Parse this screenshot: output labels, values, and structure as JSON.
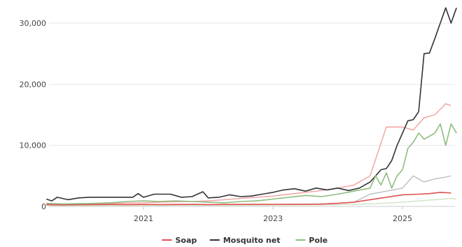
{
  "chart_data": {
    "type": "line",
    "x_domain": [
      "2019-07",
      "2025-10"
    ],
    "ylim": [
      0,
      33000
    ],
    "grid": true,
    "legend_position": "bottom",
    "y_ticks": [
      {
        "value": 0,
        "label": "0"
      },
      {
        "value": 10000,
        "label": "10,000"
      },
      {
        "value": 20000,
        "label": "20,000"
      },
      {
        "value": 30000,
        "label": "30,000"
      }
    ],
    "x_ticks": [
      {
        "value": "2021-01",
        "label": "2021"
      },
      {
        "value": "2023-01",
        "label": "2023"
      },
      {
        "value": "2025-01",
        "label": "2025"
      }
    ],
    "series": [
      {
        "name": "Soap",
        "color": "#e05050",
        "in_legend": true,
        "points": [
          [
            "2019-07",
            300
          ],
          [
            "2019-10",
            250
          ],
          [
            "2020-01",
            280
          ],
          [
            "2020-04",
            300
          ],
          [
            "2020-07",
            320
          ],
          [
            "2020-10",
            300
          ],
          [
            "2021-01",
            320
          ],
          [
            "2021-04",
            300
          ],
          [
            "2021-07",
            320
          ],
          [
            "2021-10",
            330
          ],
          [
            "2022-01",
            300
          ],
          [
            "2022-04",
            320
          ],
          [
            "2022-07",
            330
          ],
          [
            "2022-10",
            330
          ],
          [
            "2023-01",
            340
          ],
          [
            "2023-04",
            350
          ],
          [
            "2023-07",
            360
          ],
          [
            "2023-10",
            380
          ],
          [
            "2024-01",
            500
          ],
          [
            "2024-04",
            700
          ],
          [
            "2024-07",
            1100
          ],
          [
            "2024-10",
            1500
          ],
          [
            "2025-01",
            1900
          ],
          [
            "2025-04",
            2000
          ],
          [
            "2025-06",
            2100
          ],
          [
            "2025-08",
            2300
          ],
          [
            "2025-10",
            2200
          ]
        ]
      },
      {
        "name": "",
        "color": "#f0a0a0",
        "in_legend": false,
        "points": [
          [
            "2019-07",
            400
          ],
          [
            "2019-10",
            350
          ],
          [
            "2020-01",
            400
          ],
          [
            "2020-04",
            450
          ],
          [
            "2020-07",
            500
          ],
          [
            "2020-10",
            550
          ],
          [
            "2021-01",
            600
          ],
          [
            "2021-04",
            700
          ],
          [
            "2021-07",
            750
          ],
          [
            "2021-10",
            800
          ],
          [
            "2022-01",
            900
          ],
          [
            "2022-04",
            1100
          ],
          [
            "2022-07",
            1300
          ],
          [
            "2022-10",
            1500
          ],
          [
            "2023-01",
            1700
          ],
          [
            "2023-04",
            2000
          ],
          [
            "2023-07",
            2300
          ],
          [
            "2023-10",
            2600
          ],
          [
            "2024-01",
            3000
          ],
          [
            "2024-04",
            3500
          ],
          [
            "2024-07",
            5000
          ],
          [
            "2024-10",
            13000
          ],
          [
            "2025-01",
            13000
          ],
          [
            "2025-03",
            12500
          ],
          [
            "2025-05",
            14500
          ],
          [
            "2025-07",
            15000
          ],
          [
            "2025-09",
            16800
          ],
          [
            "2025-10",
            16500
          ]
        ]
      },
      {
        "name": "Mosquito net",
        "color": "#333333",
        "in_legend": true,
        "points": [
          [
            "2019-07",
            1200
          ],
          [
            "2019-08",
            900
          ],
          [
            "2019-09",
            1500
          ],
          [
            "2019-11",
            1100
          ],
          [
            "2020-01",
            1400
          ],
          [
            "2020-03",
            1500
          ],
          [
            "2020-06",
            1500
          ],
          [
            "2020-09",
            1500
          ],
          [
            "2020-11",
            1500
          ],
          [
            "2020-12",
            2100
          ],
          [
            "2021-01",
            1500
          ],
          [
            "2021-03",
            2000
          ],
          [
            "2021-06",
            2000
          ],
          [
            "2021-08",
            1500
          ],
          [
            "2021-10",
            1600
          ],
          [
            "2021-12",
            2400
          ],
          [
            "2022-01",
            1400
          ],
          [
            "2022-03",
            1500
          ],
          [
            "2022-05",
            1900
          ],
          [
            "2022-07",
            1600
          ],
          [
            "2022-09",
            1700
          ],
          [
            "2022-11",
            2000
          ],
          [
            "2023-01",
            2300
          ],
          [
            "2023-03",
            2700
          ],
          [
            "2023-05",
            2900
          ],
          [
            "2023-07",
            2500
          ],
          [
            "2023-09",
            3000
          ],
          [
            "2023-11",
            2700
          ],
          [
            "2024-01",
            3000
          ],
          [
            "2024-03",
            2600
          ],
          [
            "2024-05",
            3000
          ],
          [
            "2024-07",
            4000
          ],
          [
            "2024-09",
            6000
          ],
          [
            "2024-10",
            6200
          ],
          [
            "2024-11",
            7500
          ],
          [
            "2024-12",
            10000
          ],
          [
            "2025-01",
            12000
          ],
          [
            "2025-02",
            14000
          ],
          [
            "2025-03",
            14200
          ],
          [
            "2025-04",
            15500
          ],
          [
            "2025-05",
            25000
          ],
          [
            "2025-06",
            25100
          ],
          [
            "2025-07",
            27500
          ],
          [
            "2025-08",
            30000
          ],
          [
            "2025-09",
            32500
          ],
          [
            "2025-10",
            30000
          ],
          [
            "2025-11",
            32500
          ]
        ]
      },
      {
        "name": "",
        "color": "#bdbdbd",
        "in_legend": false,
        "points": [
          [
            "2019-07",
            200
          ],
          [
            "2020-01",
            200
          ],
          [
            "2020-07",
            220
          ],
          [
            "2021-01",
            220
          ],
          [
            "2021-07",
            250
          ],
          [
            "2022-01",
            250
          ],
          [
            "2022-07",
            280
          ],
          [
            "2023-01",
            300
          ],
          [
            "2023-07",
            350
          ],
          [
            "2023-10",
            400
          ],
          [
            "2024-01",
            500
          ],
          [
            "2024-04",
            700
          ],
          [
            "2024-07",
            2000
          ],
          [
            "2024-10",
            2500
          ],
          [
            "2025-01",
            3000
          ],
          [
            "2025-03",
            5000
          ],
          [
            "2025-05",
            4000
          ],
          [
            "2025-07",
            4500
          ],
          [
            "2025-09",
            4800
          ],
          [
            "2025-10",
            5000
          ]
        ]
      },
      {
        "name": "Pole",
        "color": "#8fbc7f",
        "in_legend": true,
        "points": [
          [
            "2019-07",
            500
          ],
          [
            "2019-10",
            400
          ],
          [
            "2020-01",
            450
          ],
          [
            "2020-04",
            500
          ],
          [
            "2020-07",
            600
          ],
          [
            "2020-10",
            800
          ],
          [
            "2021-01",
            900
          ],
          [
            "2021-04",
            800
          ],
          [
            "2021-07",
            900
          ],
          [
            "2021-10",
            800
          ],
          [
            "2022-01",
            700
          ],
          [
            "2022-04",
            600
          ],
          [
            "2022-07",
            800
          ],
          [
            "2022-10",
            900
          ],
          [
            "2023-01",
            1200
          ],
          [
            "2023-04",
            1500
          ],
          [
            "2023-07",
            1800
          ],
          [
            "2023-10",
            1600
          ],
          [
            "2024-01",
            2000
          ],
          [
            "2024-04",
            2500
          ],
          [
            "2024-07",
            3000
          ],
          [
            "2024-08",
            5000
          ],
          [
            "2024-09",
            3500
          ],
          [
            "2024-10",
            5500
          ],
          [
            "2024-11",
            3000
          ],
          [
            "2024-12",
            5000
          ],
          [
            "2025-01",
            6000
          ],
          [
            "2025-02",
            9500
          ],
          [
            "2025-03",
            10500
          ],
          [
            "2025-04",
            12000
          ],
          [
            "2025-05",
            11000
          ],
          [
            "2025-06",
            11500
          ],
          [
            "2025-07",
            12000
          ],
          [
            "2025-08",
            13500
          ],
          [
            "2025-09",
            10000
          ],
          [
            "2025-10",
            13500
          ],
          [
            "2025-11",
            12000
          ]
        ]
      },
      {
        "name": "",
        "color": "#cfe3c5",
        "in_legend": false,
        "points": [
          [
            "2019-07",
            150
          ],
          [
            "2020-01",
            150
          ],
          [
            "2020-07",
            160
          ],
          [
            "2021-01",
            180
          ],
          [
            "2021-07",
            180
          ],
          [
            "2022-01",
            200
          ],
          [
            "2022-07",
            200
          ],
          [
            "2023-01",
            220
          ],
          [
            "2023-07",
            250
          ],
          [
            "2024-01",
            300
          ],
          [
            "2024-07",
            400
          ],
          [
            "2025-01",
            700
          ],
          [
            "2025-04",
            900
          ],
          [
            "2025-07",
            1100
          ],
          [
            "2025-10",
            1300
          ],
          [
            "2025-11",
            1200
          ]
        ]
      }
    ]
  }
}
